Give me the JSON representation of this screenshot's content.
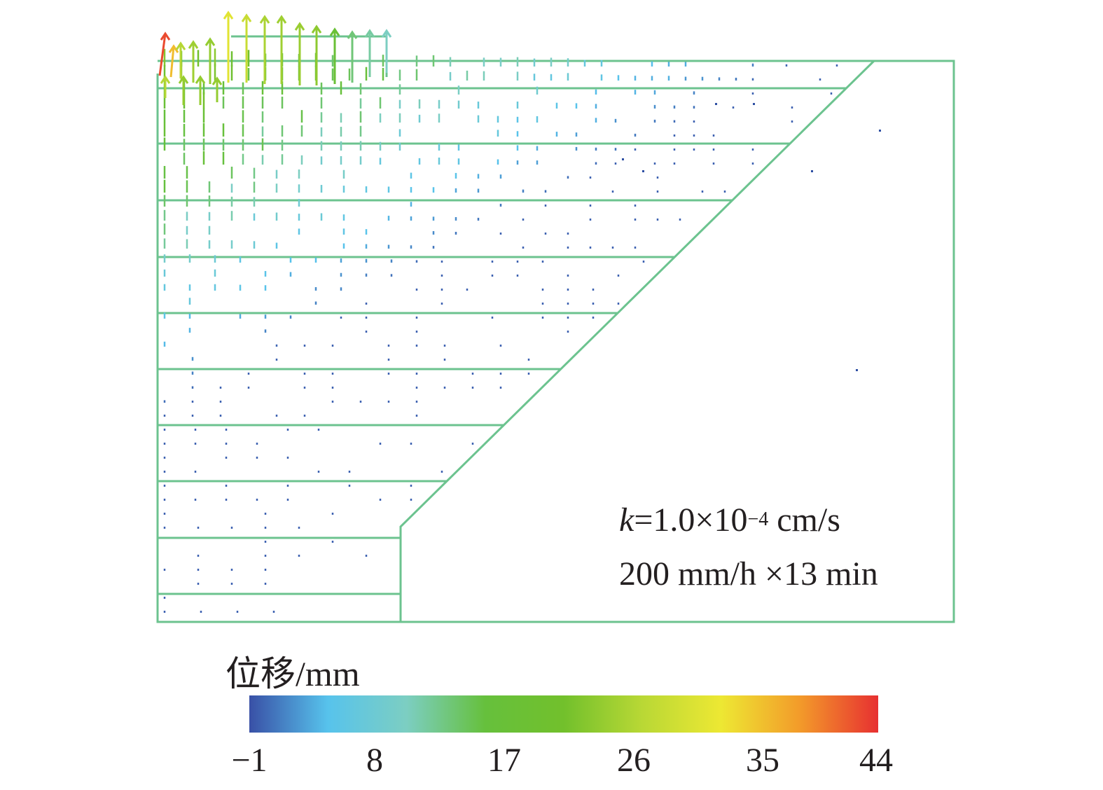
{
  "figure": {
    "parameters": {
      "k_symbol": "k",
      "k_value": "=1.0×10",
      "k_exponent": "−4",
      "k_unit": " cm/s",
      "rainfall": "200 mm/h ×13 min"
    },
    "colors": {
      "mesh_line": "#6cc38f",
      "vector_low": "#2e4fa3"
    }
  },
  "legend": {
    "title": "位移/mm",
    "ticks": [
      "−1",
      "8",
      "17",
      "26",
      "35",
      "44"
    ],
    "range": [
      -1,
      44
    ],
    "colors": [
      "#3950a6",
      "#57c3ec",
      "#7ccec2",
      "#66c03c",
      "#72c02c",
      "#b9d835",
      "#ede833",
      "#f39b2a",
      "#e73031"
    ]
  }
}
